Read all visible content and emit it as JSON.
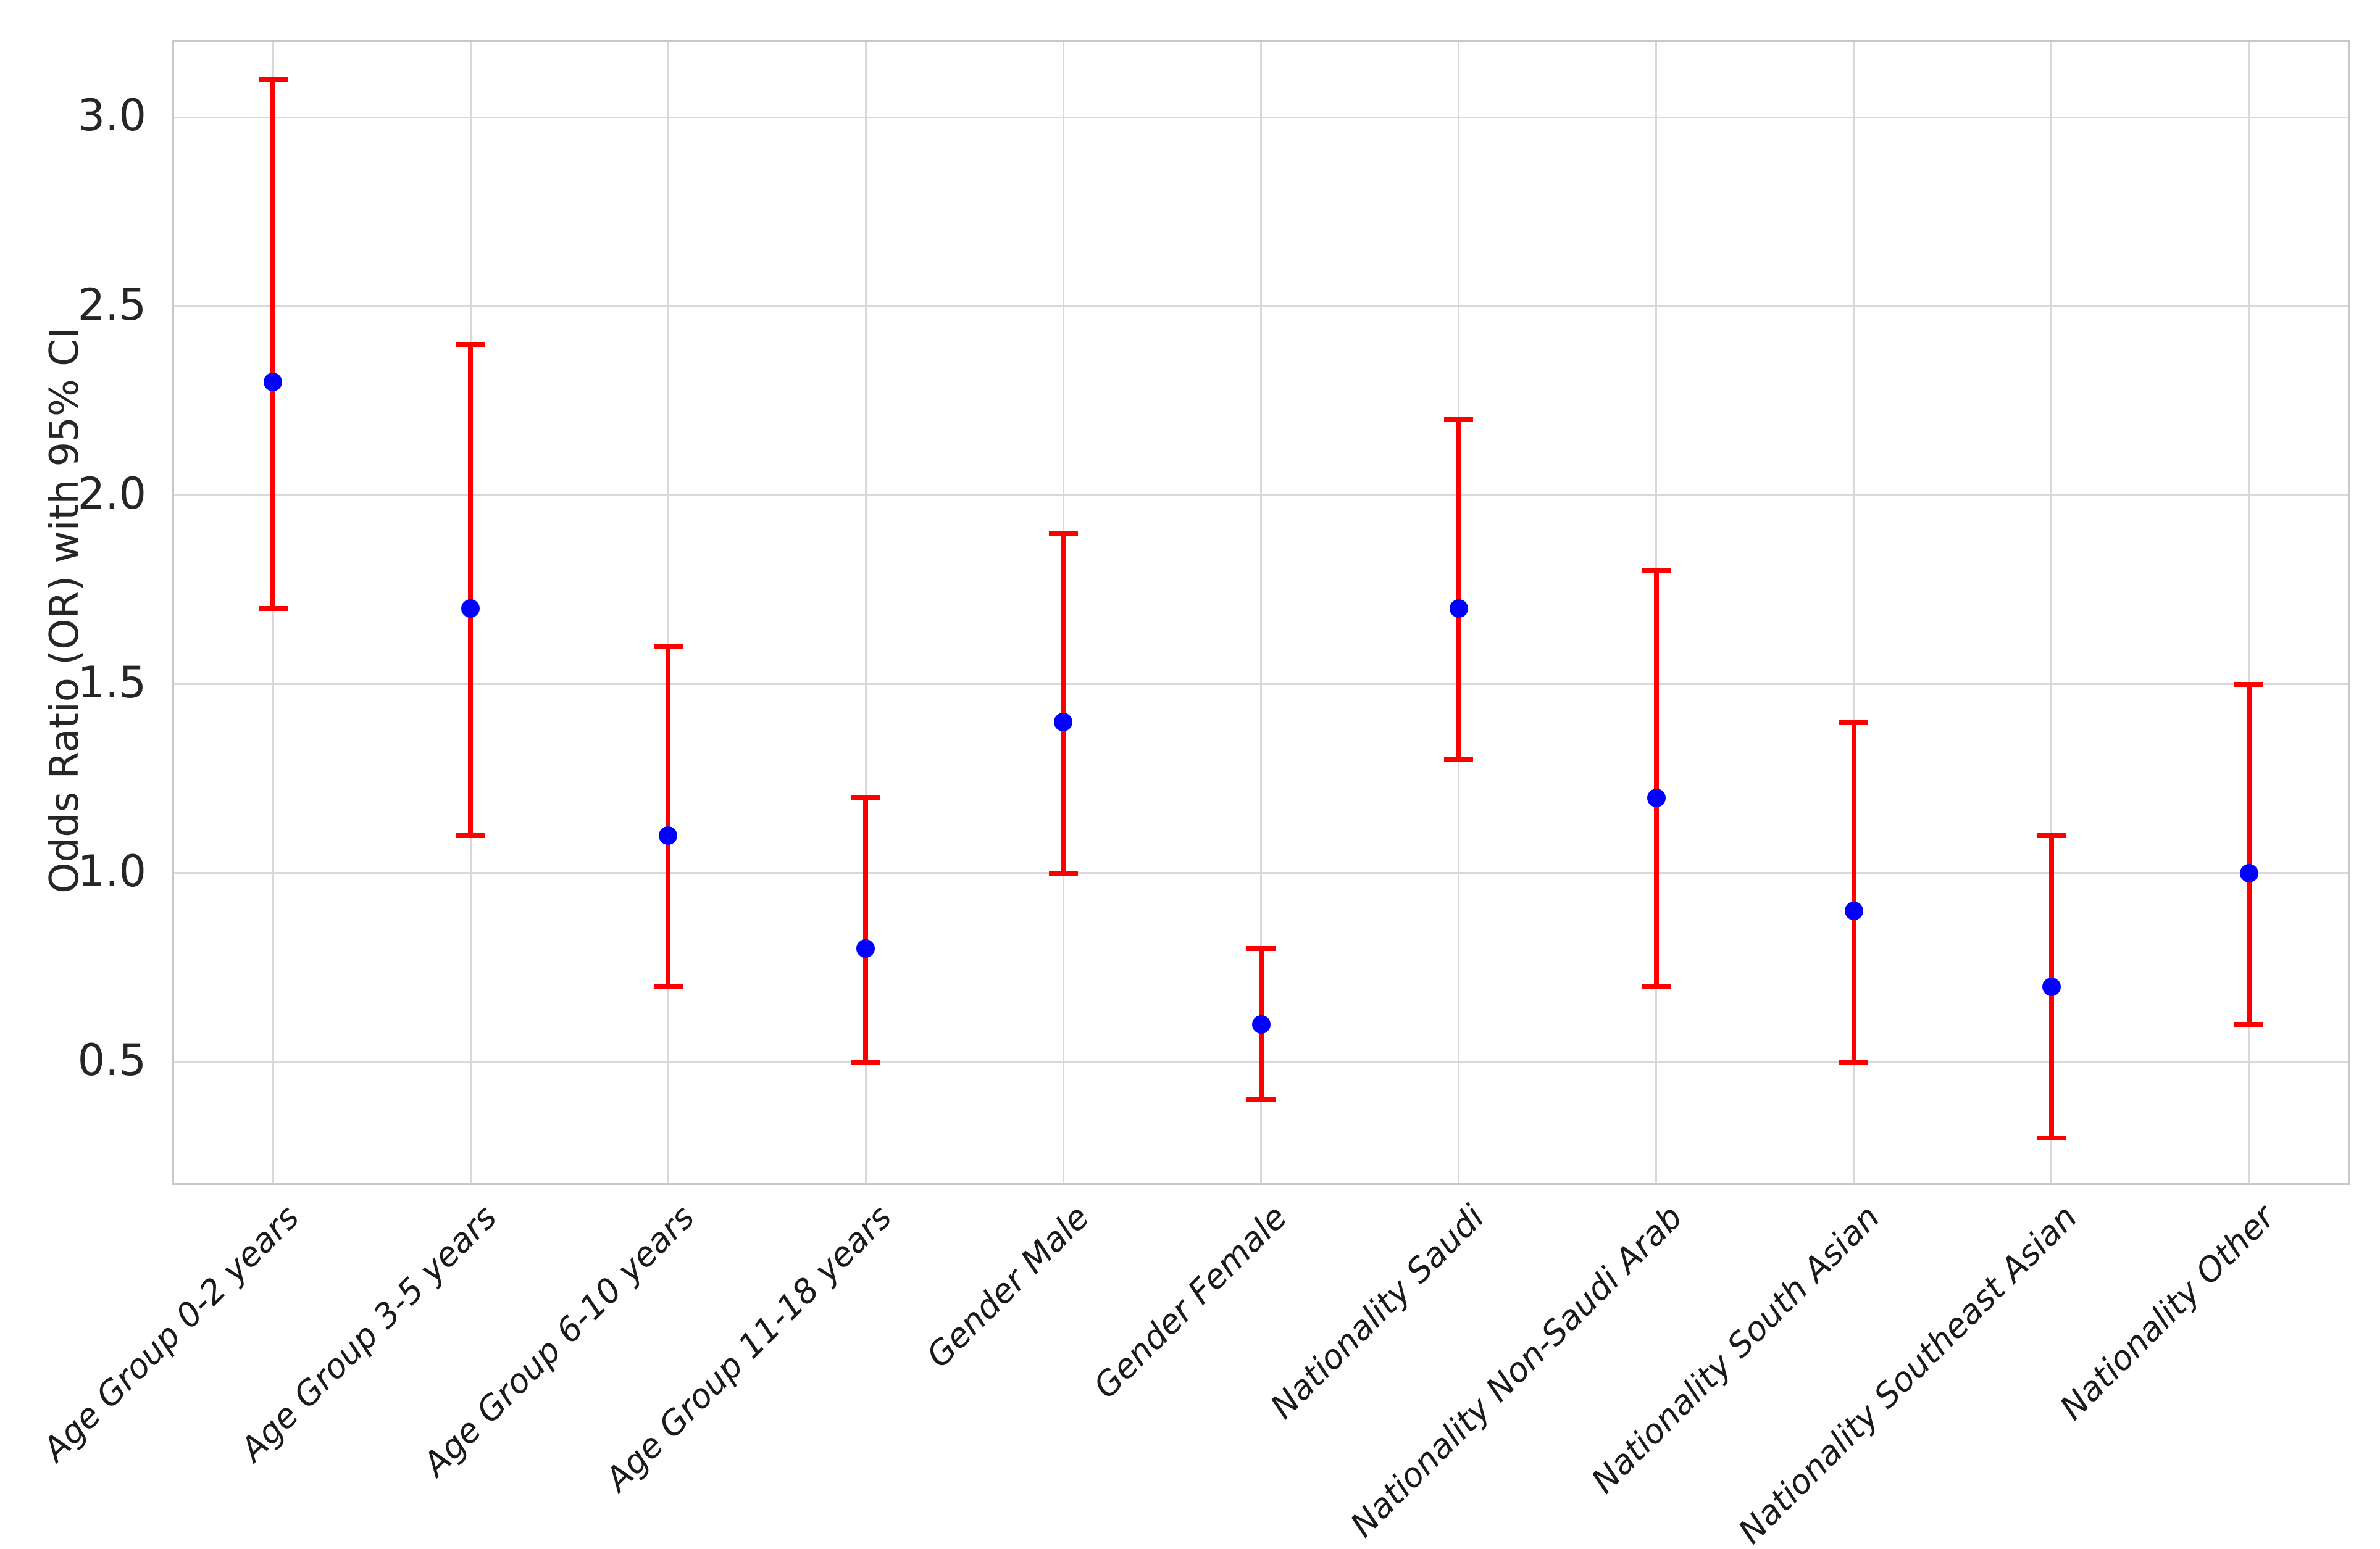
{
  "chart_data": {
    "type": "scatter",
    "subtype": "errorbar",
    "title": "",
    "xlabel": "",
    "ylabel": "Odds Ratio (OR) with 95% CI",
    "categories": [
      "Age Group 0-2 years",
      "Age Group 3-5 years",
      "Age Group 6-10 years",
      "Age Group 11-18 years",
      "Gender Male",
      "Gender Female",
      "Nationality Saudi",
      "Nationality Non-Saudi Arab",
      "Nationality South Asian",
      "Nationality Southeast Asian",
      "Nationality Other"
    ],
    "series": [
      {
        "name": "Odds Ratio (OR)",
        "values": [
          2.3,
          1.7,
          1.1,
          0.8,
          1.4,
          0.6,
          1.7,
          1.2,
          0.9,
          0.7,
          1.0
        ],
        "ci_lower": [
          1.7,
          1.1,
          0.7,
          0.5,
          1.0,
          0.4,
          1.3,
          0.7,
          0.5,
          0.3,
          0.6
        ],
        "ci_upper": [
          3.1,
          2.4,
          1.6,
          1.2,
          1.9,
          0.8,
          2.2,
          1.8,
          1.4,
          1.1,
          1.5
        ]
      }
    ],
    "yticks": [
      0.5,
      1.0,
      1.5,
      2.0,
      2.5,
      3.0
    ],
    "ylim": [
      0.18,
      3.2
    ],
    "grid": true,
    "legend_position": "none",
    "x_tick_rotation_deg": 45,
    "colors": {
      "marker": "#0000ff",
      "errorbar": "#ff0000",
      "grid": "#d9d9d9",
      "spine": "#c8c8c8",
      "tick_text": "#262626"
    }
  }
}
